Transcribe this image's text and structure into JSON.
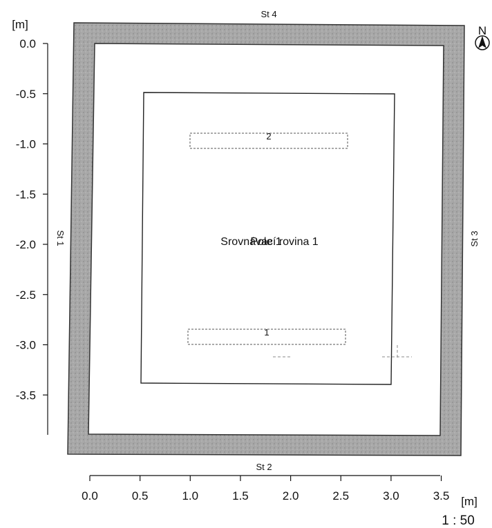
{
  "plan": {
    "unit": "[m]",
    "scale": "1 : 50",
    "north": "N",
    "walls": {
      "top": "St 4",
      "bottom": "St 2",
      "left": "St 1",
      "right": "St 3"
    },
    "center_label_a": "Srovnávací rovina 1",
    "center_label_b": "Pole 1",
    "openings": [
      {
        "label": "2"
      },
      {
        "label": "1"
      }
    ],
    "y_axis": {
      "ticks": [
        "0.0",
        "-0.5",
        "-1.0",
        "-1.5",
        "-2.0",
        "-2.5",
        "-3.0",
        "-3.5"
      ],
      "values": [
        0.0,
        -0.5,
        -1.0,
        -1.5,
        -2.0,
        -2.5,
        -3.0,
        -3.5
      ]
    },
    "x_axis": {
      "ticks": [
        "0.0",
        "0.5",
        "1.0",
        "1.5",
        "2.0",
        "2.5",
        "3.0",
        "3.5"
      ],
      "values": [
        0.0,
        0.5,
        1.0,
        1.5,
        2.0,
        2.5,
        3.0,
        3.5
      ]
    }
  }
}
